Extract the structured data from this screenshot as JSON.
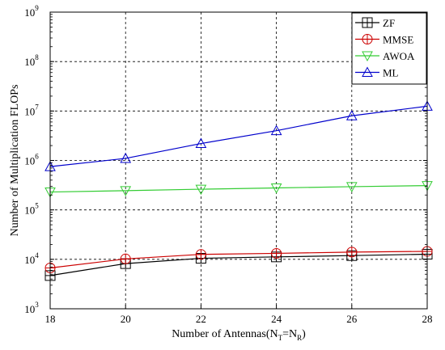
{
  "chart_data": {
    "type": "line",
    "xlabel": {
      "prefix": "Number of Antennas(N",
      "sub1": "T",
      "mid": "=N",
      "sub2": "R",
      "suffix": ")"
    },
    "ylabel": "Number of Multiplication FLOPs",
    "x": [
      18,
      20,
      22,
      24,
      26,
      28
    ],
    "xlim": [
      18,
      28
    ],
    "xticks": [
      "18",
      "20",
      "22",
      "24",
      "26",
      "28"
    ],
    "yscale": "log",
    "ylim": [
      1000,
      1000000000
    ],
    "yticks": [
      {
        "base": "10",
        "exp": "3",
        "value": 1000
      },
      {
        "base": "10",
        "exp": "4",
        "value": 10000
      },
      {
        "base": "10",
        "exp": "5",
        "value": 100000
      },
      {
        "base": "10",
        "exp": "6",
        "value": 1000000
      },
      {
        "base": "10",
        "exp": "7",
        "value": 10000000
      },
      {
        "base": "10",
        "exp": "8",
        "value": 100000000
      },
      {
        "base": "10",
        "exp": "9",
        "value": 1000000000
      }
    ],
    "grid": true,
    "legend_position": "top-right",
    "series": [
      {
        "name": "ZF",
        "color": "#000000",
        "marker": "square-plus",
        "values": [
          4700,
          8200,
          10500,
          11200,
          11900,
          12700
        ]
      },
      {
        "name": "MMSE",
        "color": "#cc0000",
        "marker": "circle-plus",
        "values": [
          6700,
          10200,
          12600,
          13200,
          14000,
          14500
        ]
      },
      {
        "name": "AWOA",
        "color": "#33cc33",
        "marker": "triangle-down",
        "values": [
          230000,
          245000,
          262000,
          278000,
          295000,
          310000
        ]
      },
      {
        "name": "ML",
        "color": "#0000cc",
        "marker": "triangle-up",
        "values": [
          750000,
          1100000,
          2200000,
          4000000,
          8000000,
          12500000
        ]
      }
    ]
  }
}
